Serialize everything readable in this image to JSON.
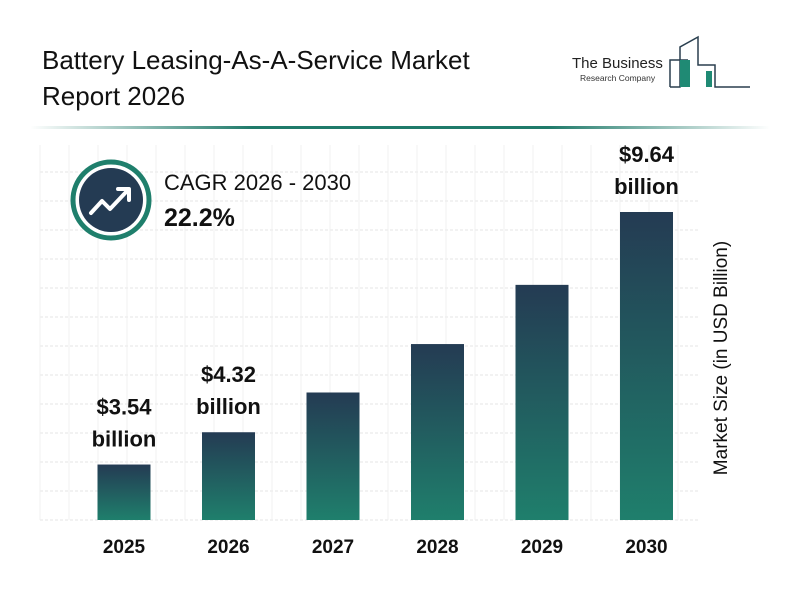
{
  "header": {
    "title": "Battery Leasing-As-A-Service Market Report 2026"
  },
  "logo": {
    "line1": "The Business",
    "line2": "Research Company",
    "color": "#1f8a74"
  },
  "cagr": {
    "label": "CAGR 2026 - 2030",
    "value": "22.2%",
    "icon": "trend-up-arrow-icon"
  },
  "colors": {
    "bar_top": "#243b53",
    "bar_bottom": "#1f7f6c",
    "accent": "#1f7a6a"
  },
  "chart_data": {
    "type": "bar",
    "categories": [
      "2025",
      "2026",
      "2027",
      "2028",
      "2029",
      "2030"
    ],
    "values": [
      3.54,
      4.32,
      5.28,
      6.45,
      7.88,
      9.64
    ],
    "data_labels": [
      {
        "line1": "$3.54",
        "line2": "billion"
      },
      {
        "line1": "$4.32",
        "line2": "billion"
      },
      null,
      null,
      null,
      {
        "line1": "$9.64",
        "line2": "billion"
      }
    ],
    "ylabel": "Market Size (in USD Billion)",
    "grid": true
  }
}
